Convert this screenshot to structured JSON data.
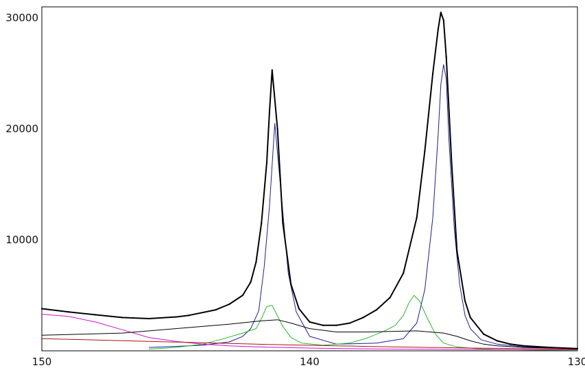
{
  "chart_data": {
    "type": "line",
    "title": "",
    "xlabel": "",
    "ylabel": "",
    "x_reversed": true,
    "xlim": [
      150,
      130
    ],
    "ylim": [
      0,
      31000
    ],
    "x_ticks": [
      150,
      140,
      130
    ],
    "x_tick_labels": [
      "150",
      "140",
      "130"
    ],
    "y_ticks": [
      10000,
      20000,
      30000
    ],
    "y_tick_labels": [
      "10000",
      "20000",
      "30000"
    ],
    "grid": false,
    "legend": "none",
    "observed": {
      "color": "#000000",
      "x": [
        150,
        149,
        148,
        147,
        146,
        145,
        144.5,
        143.5,
        143,
        142.5,
        142.2,
        142.0,
        141.8,
        141.6,
        141.5,
        141.4,
        141.2,
        141.0,
        140.7,
        140.4,
        140,
        139.5,
        139,
        138.5,
        138,
        137.5,
        137,
        136.5,
        136.0,
        135.7,
        135.4,
        135.2,
        135.1,
        135.0,
        134.9,
        134.7,
        134.5,
        134.2,
        134,
        133.5,
        133,
        132.5,
        132,
        131,
        130
      ],
      "y": [
        3800,
        3500,
        3250,
        3000,
        2900,
        3050,
        3200,
        3700,
        4200,
        5000,
        6200,
        8000,
        11500,
        17000,
        21500,
        25300,
        20000,
        11500,
        6000,
        3800,
        2600,
        2300,
        2300,
        2500,
        3000,
        3700,
        4800,
        7000,
        12000,
        18000,
        25000,
        29000,
        30500,
        29800,
        26500,
        17000,
        9000,
        4500,
        3000,
        1500,
        900,
        600,
        450,
        300,
        200
      ]
    },
    "series": [
      {
        "name": "",
        "color": "#1a1aa6",
        "x": [
          146,
          144,
          143,
          142.5,
          142.2,
          141.9,
          141.7,
          141.5,
          141.3,
          141.0,
          140.8,
          140.5,
          140.0,
          139.0,
          137.5,
          136.5,
          136.0,
          135.7,
          135.4,
          135.2,
          135.1,
          135.0,
          134.9,
          134.8,
          134.6,
          134.4,
          134.2,
          134.0,
          133.6,
          133.0,
          132.0,
          130.0
        ],
        "y": [
          300,
          500,
          800,
          1300,
          2000,
          3600,
          7500,
          13000,
          20500,
          12500,
          7000,
          3500,
          1300,
          600,
          700,
          1100,
          2500,
          5500,
          12000,
          19500,
          24000,
          25800,
          24500,
          19000,
          11000,
          6000,
          3200,
          2000,
          1000,
          600,
          350,
          200
        ]
      },
      {
        "name": "",
        "color": "#22bb22",
        "x": [
          146,
          145,
          144,
          143.2,
          142.5,
          142.0,
          141.8,
          141.6,
          141.4,
          141.0,
          140.7,
          140.3,
          139.5,
          138.5,
          137.8,
          137.2,
          136.8,
          136.5,
          136.3,
          136.1,
          135.9,
          135.6,
          135.3,
          135.0,
          134.5,
          133.8,
          133,
          132,
          130
        ],
        "y": [
          150,
          300,
          600,
          1100,
          1600,
          2000,
          2900,
          4000,
          4100,
          2200,
          1200,
          700,
          500,
          700,
          1200,
          1800,
          2300,
          3200,
          4300,
          5000,
          4500,
          2900,
          1500,
          700,
          350,
          200,
          120,
          80,
          40
        ]
      },
      {
        "name": "",
        "color": "#cc11cc",
        "x": [
          150,
          149,
          148,
          147,
          146,
          145,
          144,
          143,
          142,
          141,
          140,
          139,
          138,
          136,
          134,
          132,
          130
        ],
        "y": [
          3300,
          3100,
          2600,
          1900,
          1200,
          850,
          600,
          450,
          360,
          300,
          250,
          210,
          180,
          150,
          120,
          100,
          90
        ]
      },
      {
        "name": "",
        "color": "#000000",
        "x": [
          150,
          147,
          145,
          143,
          141.8,
          141.2,
          140.7,
          140,
          139,
          137.8,
          137,
          136,
          135,
          134.5,
          134,
          133.5,
          133,
          132,
          130
        ],
        "y": [
          1400,
          1600,
          2000,
          2400,
          2700,
          2800,
          2500,
          2000,
          1700,
          1700,
          1750,
          1800,
          1600,
          1300,
          900,
          600,
          450,
          300,
          200
        ]
      },
      {
        "name": "",
        "color": "#aa1111",
        "x": [
          150,
          146,
          142,
          138,
          134,
          130
        ],
        "y": [
          1100,
          850,
          600,
          400,
          250,
          150
        ]
      }
    ]
  }
}
